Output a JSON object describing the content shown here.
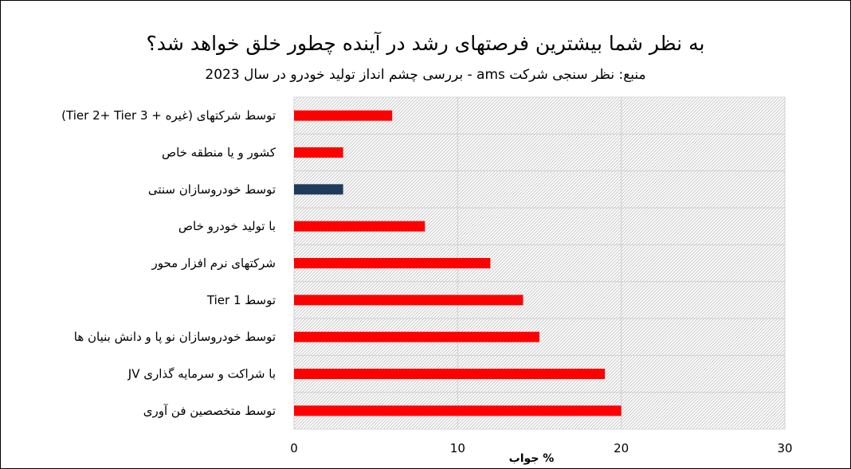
{
  "chart_data": {
    "type": "bar",
    "orientation": "horizontal",
    "title": "به نظر شما بیشترین فرصتهای رشد در آینده چطور خلق خواهد شد؟",
    "subtitle": "منبع: نظر سنجی شرکت ams - بررسی چشم انداز تولید خودرو در سال 2023",
    "xlabel": "% جواب",
    "xlim": [
      0,
      30
    ],
    "xticks": [
      "0",
      "10",
      "20",
      "30"
    ],
    "grid": true,
    "categories": [
      "توسط شرکتهای (غیره + Tier 2+ Tier 3)",
      "کشور و یا منطقه خاص",
      "توسط خودروسازان سنتی",
      "با تولید خودرو خاص",
      "شرکتهای نرم افزار محور",
      "توسط Tier 1",
      "توسط خودروسازان نو پا و دانش بنیان ها",
      "با شراکت و سرمایه گذاری JV",
      "توسط متخصصین فن آوری"
    ],
    "values": [
      6,
      3,
      3,
      8,
      12,
      14,
      15,
      19,
      20
    ],
    "bar_colors": [
      "#ff0000",
      "#ff0000",
      "#1f3b5c",
      "#ff0000",
      "#ff0000",
      "#ff0000",
      "#ff0000",
      "#ff0000",
      "#ff0000"
    ],
    "highlight_color": "#1f3b5c",
    "bar_color": "#ff0000"
  }
}
